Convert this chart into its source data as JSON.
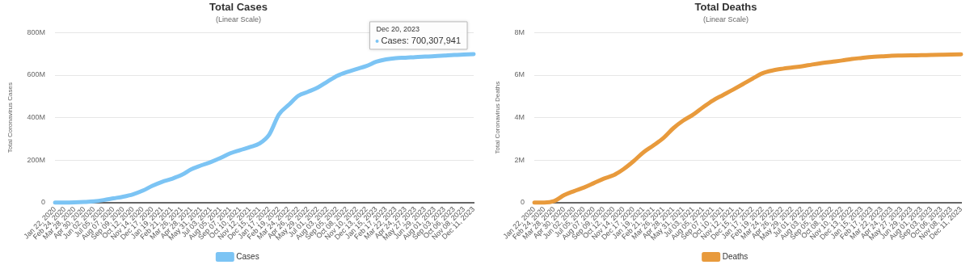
{
  "chart_data": [
    {
      "type": "line",
      "title": "Total Cases",
      "subtitle": "(Linear Scale)",
      "ylabel": "Total Coronavirus Cases",
      "categories": [
        "Jan 22, 2020",
        "Feb 24, 2020",
        "Mar 28, 2020",
        "Apr 30, 2020",
        "Jun 02, 2020",
        "Jul 05, 2020",
        "Aug 07, 2020",
        "Sep 09, 2020",
        "Oct 12, 2020",
        "Nov 14, 2020",
        "Dec 17, 2020",
        "Jan 19, 2021",
        "Feb 21, 2021",
        "Mar 26, 2021",
        "Apr 28, 2021",
        "May 31, 2021",
        "Jul 03, 2021",
        "Aug 05, 2021",
        "Sep 07, 2021",
        "Oct 10, 2021",
        "Nov 12, 2021",
        "Dec 15, 2021",
        "Jan 17, 2022",
        "Feb 19, 2022",
        "Mar 24, 2022",
        "Apr 26, 2022",
        "May 29, 2022",
        "Jul 01, 2022",
        "Aug 03, 2022",
        "Sep 05, 2022",
        "Oct 08, 2022",
        "Nov 10, 2022",
        "Dec 13, 2022",
        "Jan 15, 2023",
        "Feb 17, 2023",
        "Mar 22, 2023",
        "Apr 24, 2023",
        "May 27, 2023",
        "Jun 29, 2023",
        "Aug 01, 2023",
        "Sep 03, 2023",
        "Oct 06, 2023",
        "Nov 08, 2023",
        "Dec 11, 2023"
      ],
      "series": [
        {
          "name": "Cases",
          "color": "#7cc4f4",
          "values": [
            0,
            0,
            1,
            3,
            6,
            12,
            20,
            28,
            39,
            56,
            79,
            98,
            112,
            130,
            157,
            175,
            191,
            210,
            232,
            247,
            261,
            278,
            320,
            415,
            460,
            503,
            522,
            542,
            570,
            597,
            615,
            629,
            643,
            663,
            674,
            680,
            682,
            685,
            687,
            689,
            692,
            695,
            697,
            699
          ]
        }
      ],
      "ylim": [
        0,
        800
      ],
      "yticks": [
        {
          "value": 0,
          "label": "0"
        },
        {
          "value": 200,
          "label": "200M"
        },
        {
          "value": 400,
          "label": "400M"
        },
        {
          "value": 600,
          "label": "600M"
        },
        {
          "value": 800,
          "label": "800M"
        }
      ],
      "grid": "y",
      "legend": "bottom",
      "marker": "none",
      "line_style": "solid",
      "annotations": [
        "Dec 20, 2023",
        "Cases: 700,307,941"
      ]
    },
    {
      "type": "line",
      "title": "Total Deaths",
      "subtitle": "(Linear Scale)",
      "ylabel": "Total Coronavirus Deaths",
      "categories": [
        "Jan 22, 2020",
        "Feb 24, 2020",
        "Mar 28, 2020",
        "Apr 30, 2020",
        "Jun 02, 2020",
        "Jul 05, 2020",
        "Aug 07, 2020",
        "Sep 09, 2020",
        "Oct 12, 2020",
        "Nov 14, 2020",
        "Dec 17, 2020",
        "Jan 19, 2021",
        "Feb 21, 2021",
        "Mar 26, 2021",
        "Apr 28, 2021",
        "May 31, 2021",
        "Jul 03, 2021",
        "Aug 05, 2021",
        "Sep 07, 2021",
        "Oct 10, 2021",
        "Nov 12, 2021",
        "Dec 15, 2021",
        "Jan 17, 2022",
        "Feb 19, 2022",
        "Mar 24, 2022",
        "Apr 26, 2022",
        "May 29, 2022",
        "Jul 01, 2022",
        "Aug 03, 2022",
        "Sep 05, 2022",
        "Oct 08, 2022",
        "Nov 10, 2022",
        "Dec 13, 2022",
        "Jan 15, 2023",
        "Feb 17, 2023",
        "Mar 22, 2023",
        "Apr 24, 2023",
        "May 27, 2023",
        "Jun 29, 2023",
        "Aug 01, 2023",
        "Sep 03, 2023",
        "Oct 06, 2023",
        "Nov 08, 2023",
        "Dec 11, 2023"
      ],
      "series": [
        {
          "name": "Deaths",
          "color": "#e89a3c",
          "values": [
            0.0,
            0.0,
            0.07,
            0.35,
            0.54,
            0.71,
            0.92,
            1.13,
            1.29,
            1.58,
            1.95,
            2.37,
            2.69,
            3.04,
            3.5,
            3.86,
            4.14,
            4.49,
            4.81,
            5.06,
            5.31,
            5.57,
            5.84,
            6.09,
            6.22,
            6.3,
            6.36,
            6.42,
            6.5,
            6.57,
            6.63,
            6.69,
            6.76,
            6.81,
            6.86,
            6.88,
            6.91,
            6.92,
            6.93,
            6.94,
            6.95,
            6.96,
            6.97,
            6.98
          ]
        }
      ],
      "ylim": [
        0,
        8
      ],
      "yticks": [
        {
          "value": 0,
          "label": "0"
        },
        {
          "value": 2,
          "label": "2M"
        },
        {
          "value": 4,
          "label": "4M"
        },
        {
          "value": 6,
          "label": "6M"
        },
        {
          "value": 8,
          "label": "8M"
        }
      ],
      "grid": "y",
      "legend": "bottom",
      "marker": "none",
      "line_style": "solid"
    }
  ]
}
